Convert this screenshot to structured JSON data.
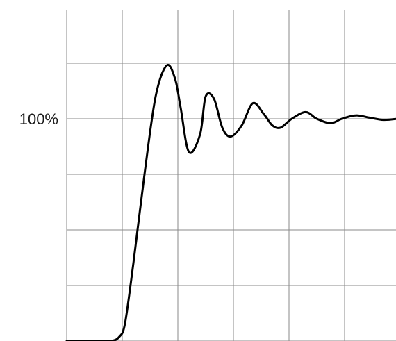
{
  "chart_data": {
    "type": "line",
    "title": "",
    "xlabel": "",
    "ylabel": "",
    "grid": true,
    "xlim": [
      0,
      6
    ],
    "ylim": [
      0,
      125
    ],
    "y_tick_values": [
      0,
      25,
      50,
      75,
      100,
      125
    ],
    "x_tick_values": [
      0,
      1,
      2,
      3,
      4,
      5,
      6
    ],
    "y_tick_labels": [
      {
        "value": 100,
        "text": "100%"
      }
    ],
    "series": [
      {
        "color": "#000000",
        "x": [
          0.0,
          0.5,
          0.8,
          0.95,
          1.05,
          1.2,
          1.4,
          1.6,
          1.8,
          1.95,
          2.05,
          2.2,
          2.4,
          2.5,
          2.65,
          2.8,
          2.95,
          3.15,
          3.35,
          3.55,
          3.7,
          3.85,
          4.05,
          4.3,
          4.5,
          4.75,
          4.95,
          5.2,
          5.45,
          5.7,
          5.95
        ],
        "y": [
          0.0,
          0.0,
          0.0,
          2.0,
          8.0,
          35.0,
          75.0,
          110.0,
          124.0,
          118.0,
          105.0,
          85.0,
          93.0,
          110.0,
          109.0,
          96.0,
          92.0,
          97.0,
          107.0,
          102.0,
          97.0,
          96.0,
          100.0,
          103.0,
          100.0,
          98.0,
          100.0,
          101.5,
          100.5,
          99.5,
          100.0
        ]
      }
    ]
  }
}
